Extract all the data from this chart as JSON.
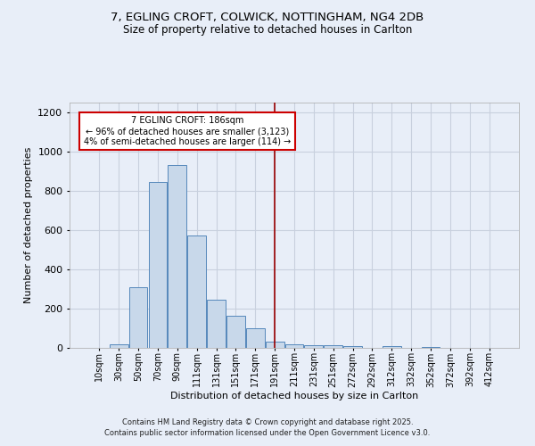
{
  "title_line1": "7, EGLING CROFT, COLWICK, NOTTINGHAM, NG4 2DB",
  "title_line2": "Size of property relative to detached houses in Carlton",
  "xlabel": "Distribution of detached houses by size in Carlton",
  "ylabel": "Number of detached properties",
  "categories": [
    "10sqm",
    "30sqm",
    "50sqm",
    "70sqm",
    "90sqm",
    "111sqm",
    "131sqm",
    "151sqm",
    "171sqm",
    "191sqm",
    "211sqm",
    "231sqm",
    "251sqm",
    "272sqm",
    "292sqm",
    "312sqm",
    "332sqm",
    "352sqm",
    "372sqm",
    "392sqm",
    "412sqm"
  ],
  "values": [
    0,
    20,
    310,
    845,
    930,
    575,
    245,
    163,
    100,
    32,
    20,
    15,
    12,
    9,
    0,
    8,
    0,
    5,
    0,
    0,
    0
  ],
  "bar_color": "#c8d8ea",
  "bar_edge_color": "#5588bb",
  "vline_x": 9.0,
  "vline_color": "#990000",
  "ylim": [
    0,
    1250
  ],
  "yticks": [
    0,
    200,
    400,
    600,
    800,
    1000,
    1200
  ],
  "annotation_title": "7 EGLING CROFT: 186sqm",
  "annotation_line1": "← 96% of detached houses are smaller (3,123)",
  "annotation_line2": "4% of semi-detached houses are larger (114) →",
  "annotation_box_facecolor": "#ffffff",
  "annotation_box_edgecolor": "#cc0000",
  "footer_line1": "Contains HM Land Registry data © Crown copyright and database right 2025.",
  "footer_line2": "Contains public sector information licensed under the Open Government Licence v3.0.",
  "background_color": "#e8eef8",
  "grid_color": "#d0d8e8"
}
